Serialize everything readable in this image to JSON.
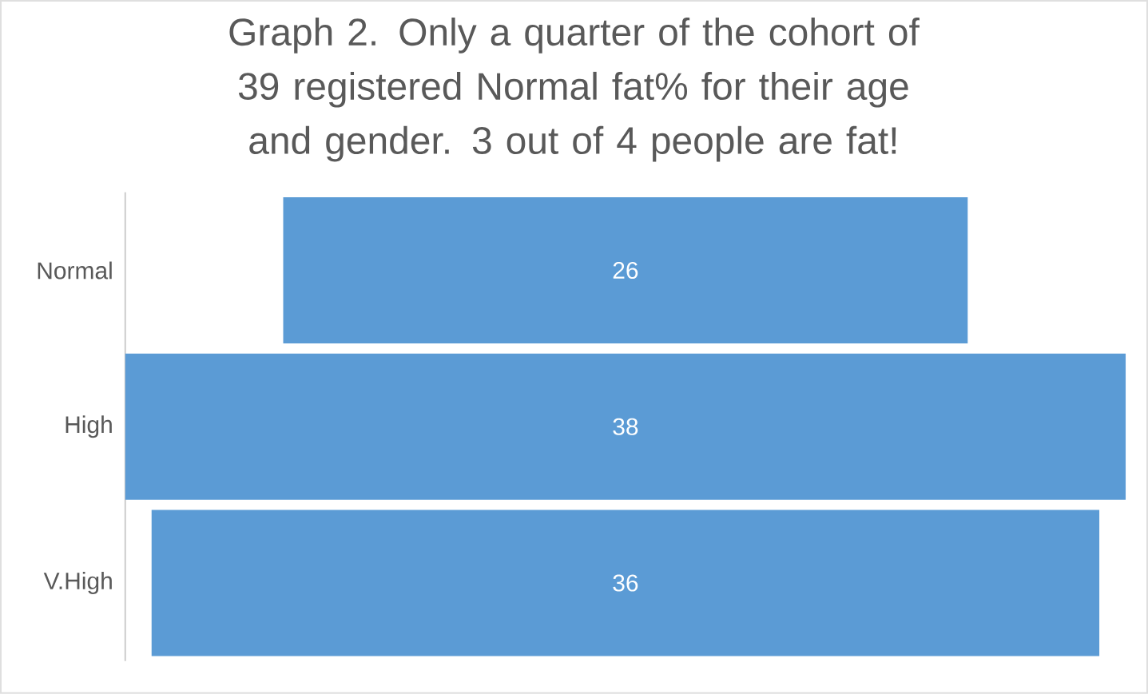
{
  "chart_data": {
    "type": "other",
    "title": "Graph 2. Only a quarter of the cohort of 39 registered Normal fat% for their age and gender. 3 out of 4 people are fat!",
    "categories": [
      "Normal",
      "High",
      "V.High"
    ],
    "values": [
      26,
      38,
      36
    ],
    "color": "#5b9bd5",
    "data_labels": true
  }
}
